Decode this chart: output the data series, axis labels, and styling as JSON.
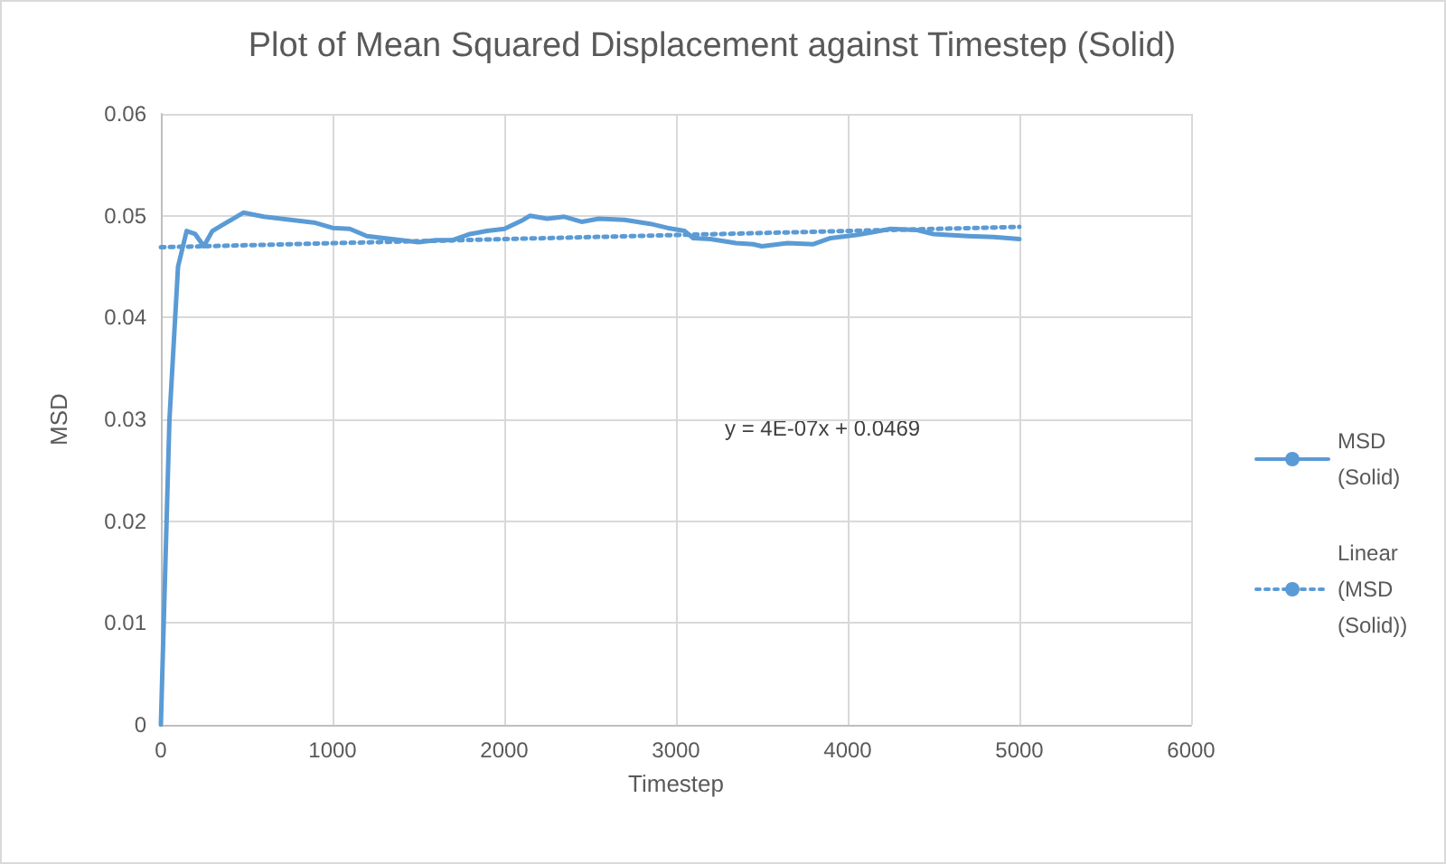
{
  "chart_data": {
    "type": "line",
    "title": "Plot of Mean Squared Displacement against Timestep (Solid)",
    "xlabel": "Timestep",
    "ylabel": "MSD",
    "xlim": [
      0,
      6000
    ],
    "xticks": [
      0,
      1000,
      2000,
      3000,
      4000,
      5000,
      6000
    ],
    "ylim": [
      0,
      0.06
    ],
    "yticks": [
      0,
      0.01,
      0.02,
      0.03,
      0.04,
      0.05,
      0.06
    ],
    "grid": true,
    "legend": "right",
    "marker": "none",
    "series": [
      {
        "name": "MSD (Solid)",
        "color": "#5b9bd5",
        "line_style": "solid",
        "x": [
          0,
          50,
          100,
          150,
          200,
          250,
          300,
          350,
          480,
          600,
          700,
          800,
          900,
          1000,
          1100,
          1200,
          1300,
          1400,
          1500,
          1600,
          1700,
          1800,
          1900,
          2000,
          2100,
          2150,
          2250,
          2350,
          2450,
          2550,
          2700,
          2850,
          2950,
          3050,
          3100,
          3200,
          3350,
          3450,
          3500,
          3650,
          3800,
          3900,
          4050,
          4150,
          4250,
          4400,
          4500,
          4700,
          4850,
          5000
        ],
        "values": [
          0,
          0.03,
          0.045,
          0.0485,
          0.0482,
          0.047,
          0.0485,
          0.049,
          0.0503,
          0.0499,
          0.0497,
          0.0495,
          0.0493,
          0.0488,
          0.0487,
          0.048,
          0.0478,
          0.0476,
          0.0474,
          0.0476,
          0.0476,
          0.0482,
          0.0485,
          0.0487,
          0.0495,
          0.05,
          0.0497,
          0.0499,
          0.0494,
          0.0497,
          0.0496,
          0.0492,
          0.0488,
          0.0485,
          0.0478,
          0.0477,
          0.0473,
          0.0472,
          0.047,
          0.0473,
          0.0472,
          0.0478,
          0.0481,
          0.0484,
          0.0487,
          0.0486,
          0.0482,
          0.048,
          0.0479,
          0.0477
        ]
      },
      {
        "name": "Linear (MSD (Solid))",
        "color": "#5b9bd5",
        "line_style": "dotted",
        "x": [
          0,
          5000
        ],
        "values": [
          0.0469,
          0.0489
        ]
      }
    ],
    "annotations": [
      "y = 4E-07x + 0.0469"
    ]
  }
}
